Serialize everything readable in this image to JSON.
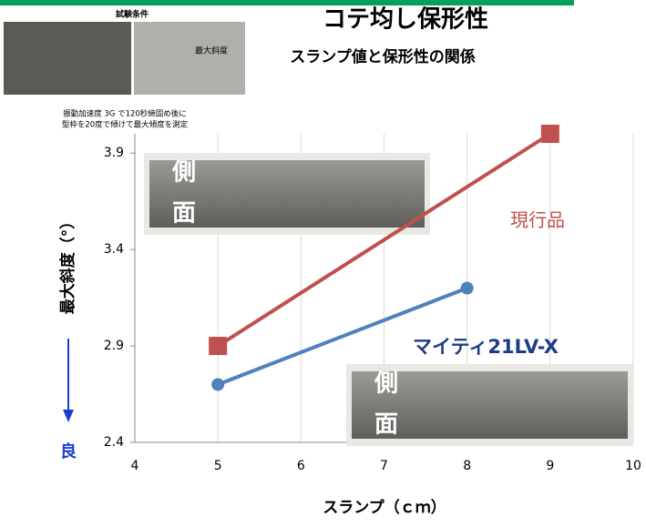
{
  "chart_data": {
    "type": "line",
    "title": "コテ均し保形性",
    "subtitle": "スランプ値と保形性の関係",
    "x_label": "スランプ（ｃｍ）",
    "y_label": "最大斜度（°）",
    "y_direction_label": "良",
    "inset": {
      "title": "試験条件",
      "photo_label": "最大斜度",
      "note": [
        "振動加速度 3G で120秒締固め後に",
        "型枠を20度で傾けて最大傾度を測定"
      ]
    },
    "photo_labels": [
      [
        "側",
        "面"
      ],
      [
        "側",
        "面"
      ]
    ],
    "series": [
      {
        "name": "現行品",
        "color": "#c0504d",
        "marker": "square",
        "x": [
          5,
          9
        ],
        "values": [
          2.9,
          4.0
        ]
      },
      {
        "name": "マイティ21LV-X",
        "color": "#4f81bd",
        "marker": "circle",
        "x": [
          5,
          8
        ],
        "values": [
          2.7,
          3.2
        ]
      }
    ],
    "xlim": [
      4,
      10
    ],
    "xticks": [
      4,
      5,
      6,
      7,
      8,
      9,
      10
    ],
    "ylim": [
      2.4,
      4.0
    ],
    "yticks": [
      2.4,
      2.9,
      3.4,
      3.9
    ],
    "grid": "x"
  }
}
